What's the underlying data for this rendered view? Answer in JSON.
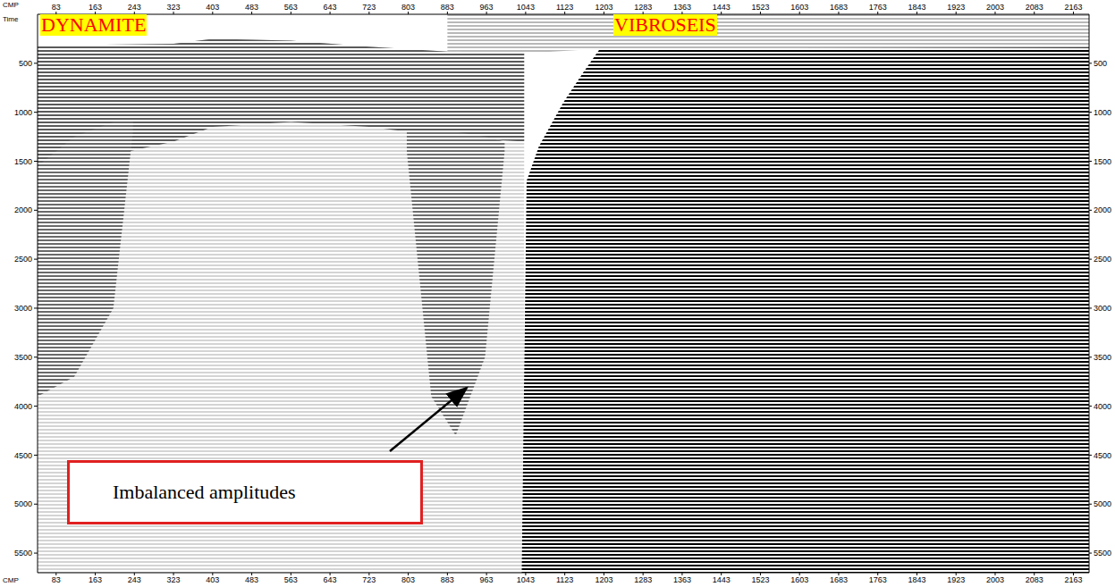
{
  "chart_data": {
    "type": "seismic_section",
    "x_label": "CMP",
    "y_label": "Time",
    "xlim": [
      45,
      2195
    ],
    "xticks": [
      83,
      163,
      243,
      323,
      403,
      483,
      563,
      643,
      723,
      803,
      883,
      963,
      1043,
      1123,
      1203,
      1283,
      1363,
      1443,
      1523,
      1603,
      1683,
      1763,
      1843,
      1923,
      2003,
      2083,
      2163
    ],
    "ylim": [
      0,
      5700
    ],
    "yticks": [
      500,
      1000,
      1500,
      2000,
      2500,
      3000,
      3500,
      4000,
      4500,
      5000,
      5500
    ],
    "annotations": [
      "DYNAMITE",
      "VIBROSEIS",
      "Imbalanced amplitudes"
    ],
    "regions": [
      {
        "x": [
          45,
          323,
          403,
          563,
          723,
          883,
          1040
        ],
        "top": [
          320,
          300,
          250,
          270,
          330,
          380,
          400
        ],
        "bottom": [
          5700,
          5700,
          5700,
          5700,
          5700,
          5700,
          5700
        ],
        "color": "#d4d4d4"
      },
      {
        "x": [
          45,
          323,
          403,
          563,
          723,
          883,
          1040
        ],
        "top": [
          320,
          300,
          250,
          270,
          330,
          380,
          400
        ],
        "bottom": [
          1600,
          1300,
          1150,
          1100,
          1150,
          1250,
          1300
        ],
        "color": "#5a5a5a"
      },
      {
        "x": [
          45,
          120,
          200,
          240
        ],
        "top": [
          1550,
          1250,
          1100,
          1100
        ],
        "bottom": [
          3900,
          3700,
          3000,
          1200
        ],
        "color": "#6a6a6a"
      },
      {
        "x": [
          800,
          850,
          900,
          960,
          1000
        ],
        "top": [
          1200,
          1200,
          1200,
          1250,
          1300
        ],
        "bottom": [
          1400,
          3900,
          4300,
          3500,
          1400
        ],
        "color": "#6e6e6e"
      },
      {
        "x": [
          883,
          1040,
          1195,
          2195
        ],
        "top": [
          0,
          0,
          0,
          0
        ],
        "bottom": [
          380,
          400,
          350,
          340
        ],
        "color": "#b8b8b8"
      },
      {
        "x": [
          1035,
          1045,
          1070,
          1120,
          1160,
          1195,
          2195
        ],
        "top": [
          5700,
          1700,
          1350,
          900,
          600,
          350,
          340
        ],
        "bottom": [
          5700,
          5700,
          5700,
          5700,
          5700,
          5700,
          5700
        ],
        "color": "#000000"
      }
    ]
  }
}
